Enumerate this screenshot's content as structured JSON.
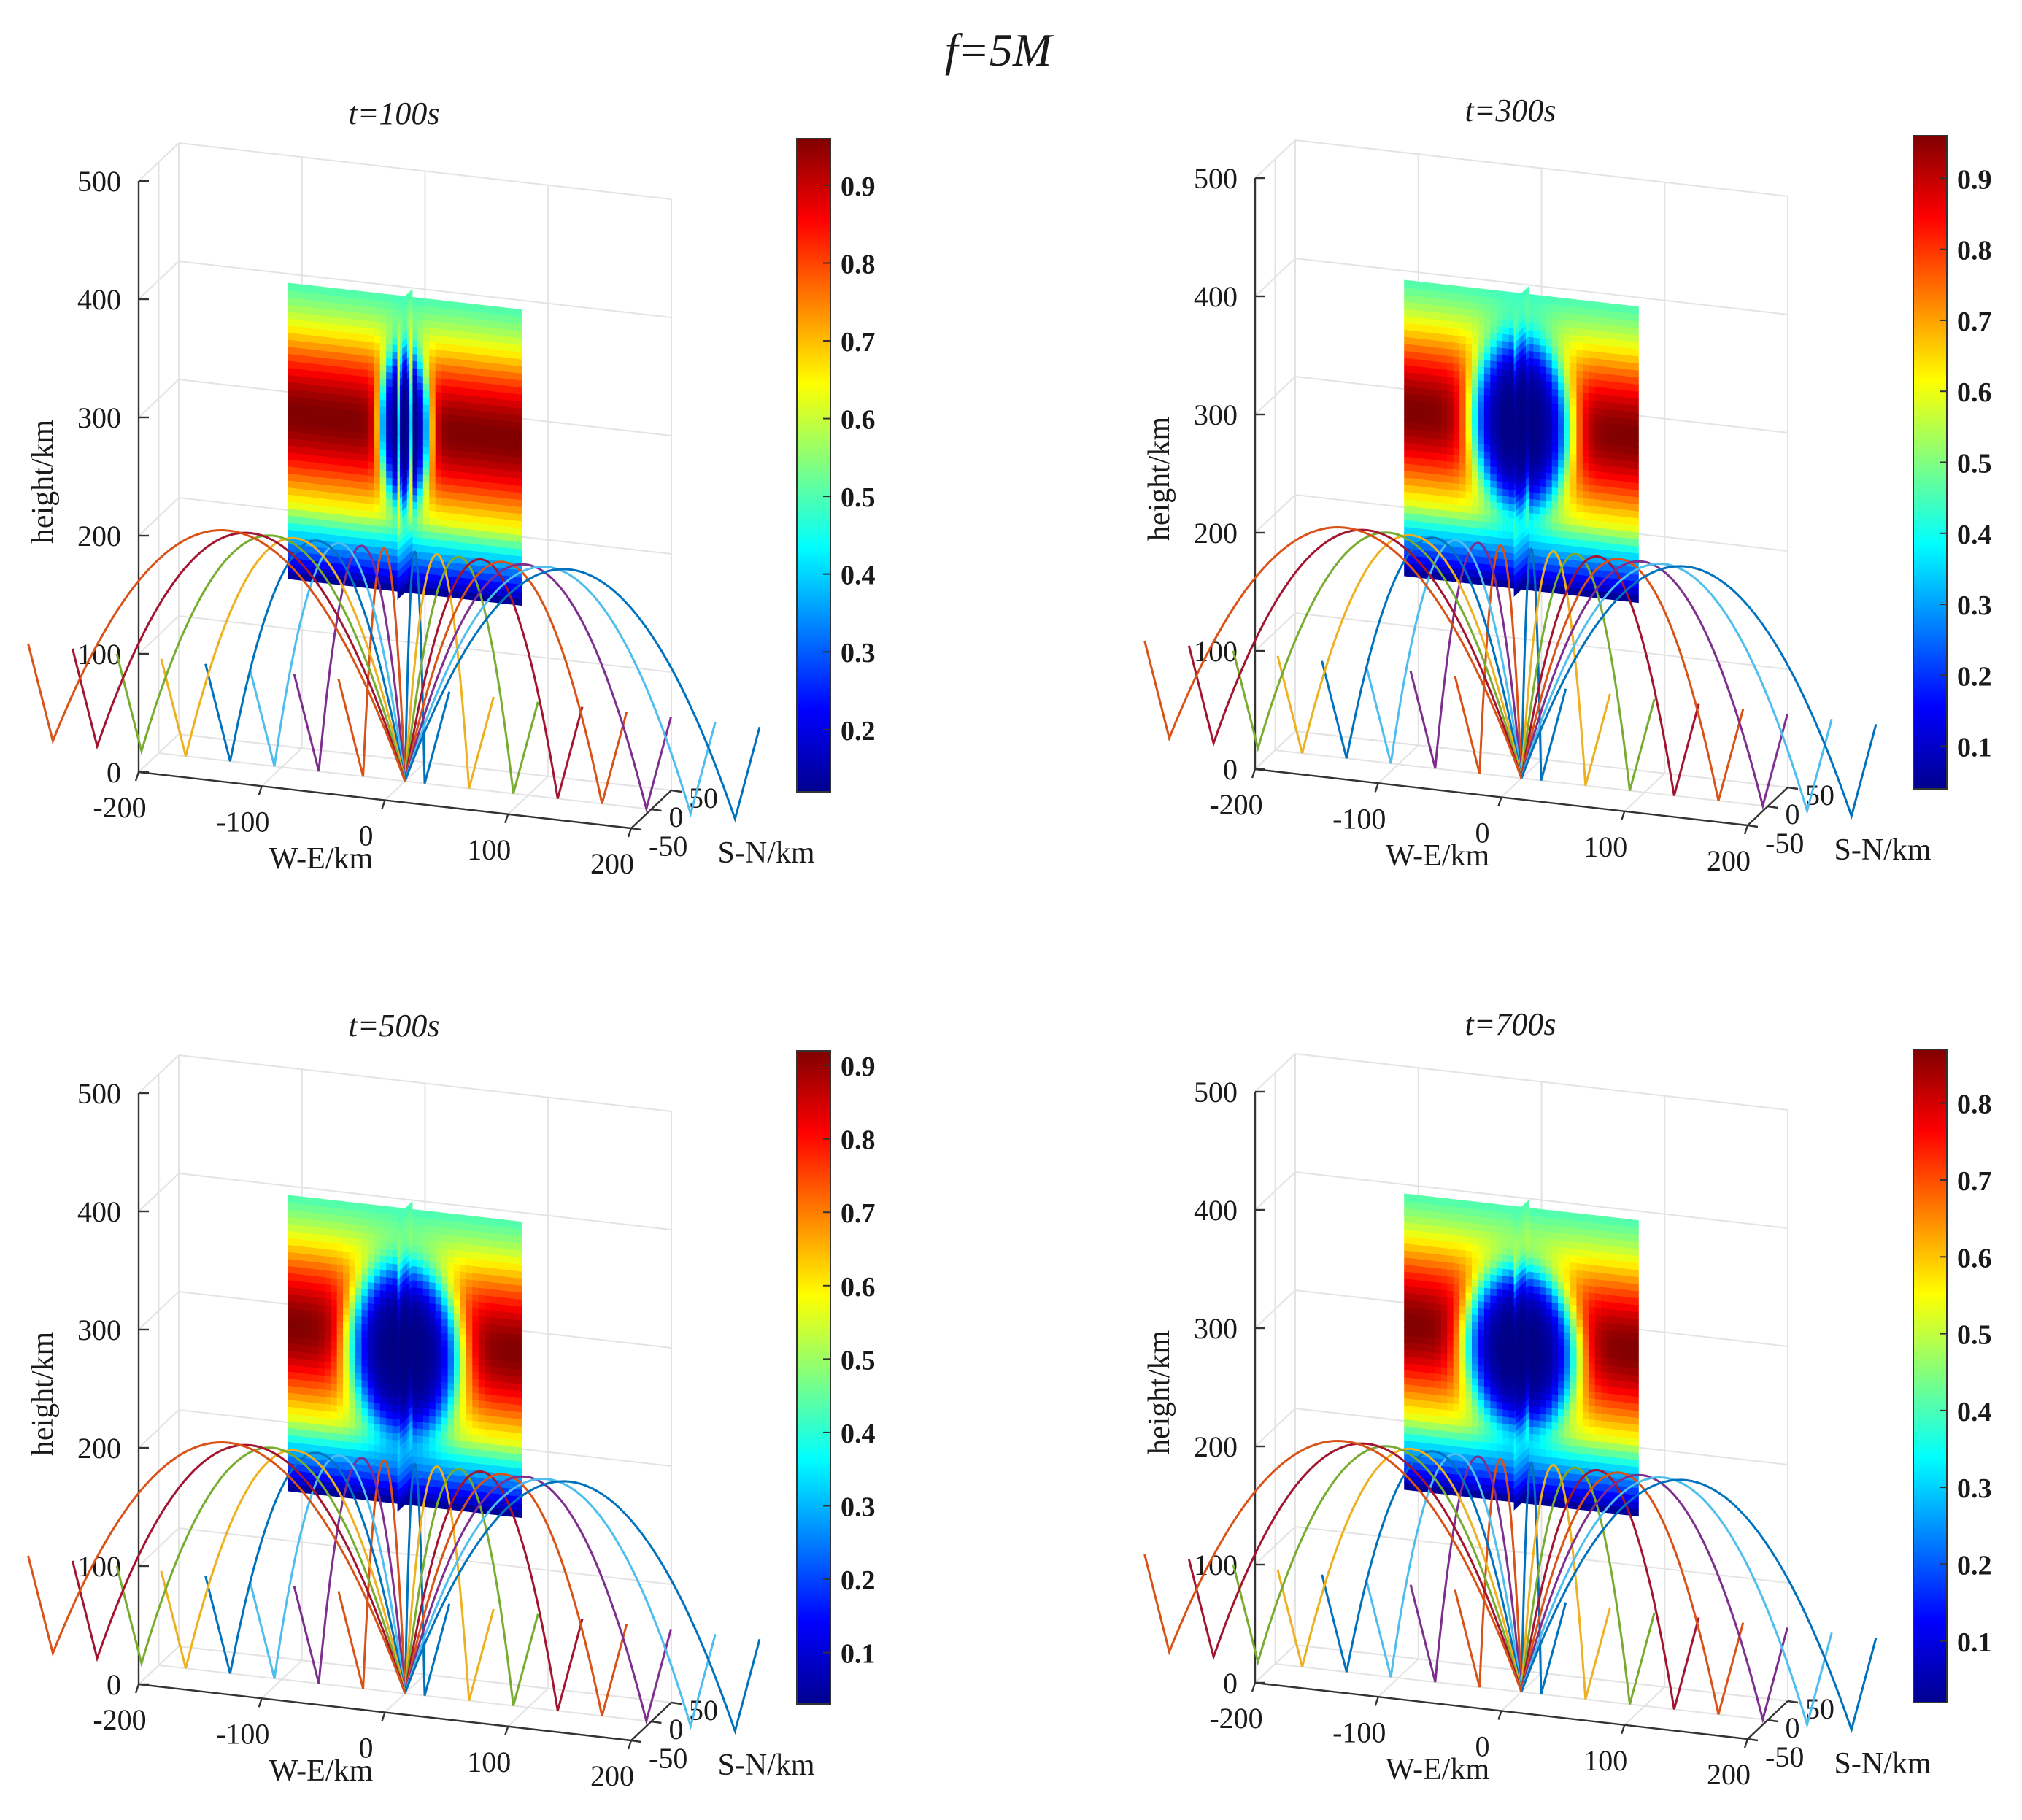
{
  "figure_title": "f=5M",
  "colors": {
    "jet": [
      "#00008f",
      "#0000ff",
      "#0080ff",
      "#00ffff",
      "#80ff80",
      "#ffff00",
      "#ff8000",
      "#ff0000",
      "#800000"
    ],
    "rays": [
      "#0072bd",
      "#d95319",
      "#edb120",
      "#7e2f8e",
      "#77ac30",
      "#4dbeee",
      "#a2142f"
    ],
    "grid": "#e3e3e3",
    "axis": "#333333"
  },
  "chart_data": [
    {
      "type": "3d-slice-with-rays",
      "title": "t=100s",
      "xlabel": "W-E/km",
      "ylabel": "S-N/km",
      "zlabel": "height/km",
      "xticks": [
        "-200",
        "-100",
        "0",
        "100",
        "200"
      ],
      "yticks": [
        "-50",
        "0",
        "50"
      ],
      "zticks": [
        "0",
        "100",
        "200",
        "300",
        "400",
        "500"
      ],
      "xlim": [
        -200,
        200
      ],
      "ylim": [
        -50,
        50
      ],
      "zlim": [
        0,
        500
      ],
      "colorbar": {
        "range": [
          0.12,
          0.96
        ],
        "ticks": [
          "0.2",
          "0.3",
          "0.4",
          "0.5",
          "0.6",
          "0.7",
          "0.8",
          "0.9"
        ]
      },
      "slice_height_range_km": [
        160,
        410
      ],
      "depletion": {
        "center_height_km": 300,
        "radius_we_km": 20,
        "radius_height_km": 70,
        "min": 0.12
      },
      "ray_apex_km": 195,
      "ray_count": 16
    },
    {
      "type": "3d-slice-with-rays",
      "title": "t=300s",
      "xlabel": "W-E/km",
      "ylabel": "S-N/km",
      "zlabel": "height/km",
      "xticks": [
        "-200",
        "-100",
        "0",
        "100",
        "200"
      ],
      "yticks": [
        "-50",
        "0",
        "50"
      ],
      "zticks": [
        "0",
        "100",
        "200",
        "300",
        "400",
        "500"
      ],
      "xlim": [
        -200,
        200
      ],
      "ylim": [
        -50,
        50
      ],
      "zlim": [
        0,
        500
      ],
      "colorbar": {
        "range": [
          0.04,
          0.96
        ],
        "ticks": [
          "0.1",
          "0.2",
          "0.3",
          "0.4",
          "0.5",
          "0.6",
          "0.7",
          "0.8",
          "0.9"
        ]
      },
      "slice_height_range_km": [
        160,
        410
      ],
      "depletion": {
        "center_height_km": 300,
        "radius_we_km": 40,
        "radius_height_km": 75,
        "min": 0.04
      },
      "ray_apex_km": 195,
      "ray_count": 16
    },
    {
      "type": "3d-slice-with-rays",
      "title": "t=500s",
      "xlabel": "W-E/km",
      "ylabel": "S-N/km",
      "zlabel": "height/km",
      "xticks": [
        "-200",
        "-100",
        "0",
        "100",
        "200"
      ],
      "yticks": [
        "-50",
        "0",
        "50"
      ],
      "zticks": [
        "0",
        "100",
        "200",
        "300",
        "400",
        "500"
      ],
      "xlim": [
        -200,
        200
      ],
      "ylim": [
        -50,
        50
      ],
      "zlim": [
        0,
        500
      ],
      "colorbar": {
        "range": [
          0.03,
          0.92
        ],
        "ticks": [
          "0.1",
          "0.2",
          "0.3",
          "0.4",
          "0.5",
          "0.6",
          "0.7",
          "0.8",
          "0.9"
        ]
      },
      "slice_height_range_km": [
        160,
        410
      ],
      "depletion": {
        "center_height_km": 290,
        "radius_we_km": 45,
        "radius_height_km": 75,
        "min": 0.03
      },
      "ray_apex_km": 195,
      "ray_count": 16
    },
    {
      "type": "3d-slice-with-rays",
      "title": "t=700s",
      "xlabel": "W-E/km",
      "ylabel": "S-N/km",
      "zlabel": "height/km",
      "xticks": [
        "-200",
        "-100",
        "0",
        "100",
        "200"
      ],
      "yticks": [
        "-50",
        "0",
        "50"
      ],
      "zticks": [
        "0",
        "100",
        "200",
        "300",
        "400",
        "500"
      ],
      "xlim": [
        -200,
        200
      ],
      "ylim": [
        -50,
        50
      ],
      "zlim": [
        0,
        500
      ],
      "colorbar": {
        "range": [
          0.02,
          0.87
        ],
        "ticks": [
          "0.1",
          "0.2",
          "0.3",
          "0.4",
          "0.5",
          "0.6",
          "0.7",
          "0.8"
        ]
      },
      "slice_height_range_km": [
        160,
        410
      ],
      "depletion": {
        "center_height_km": 290,
        "radius_we_km": 45,
        "radius_height_km": 70,
        "min": 0.02
      },
      "ray_apex_km": 195,
      "ray_count": 16
    }
  ]
}
